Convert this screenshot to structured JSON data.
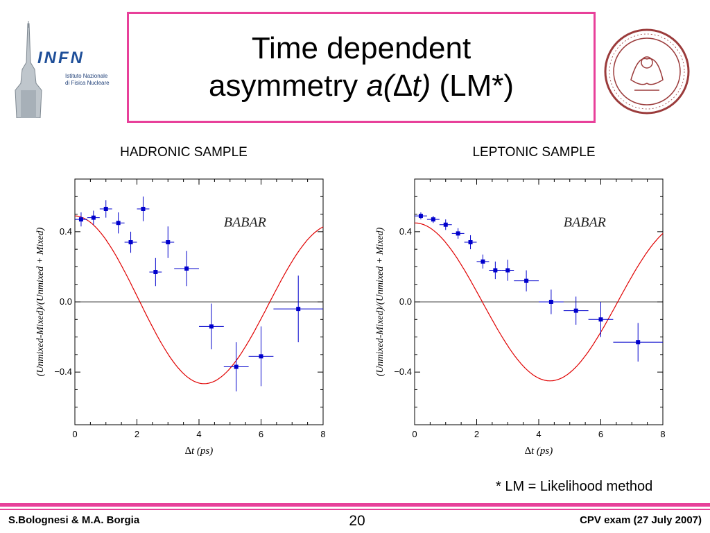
{
  "slide": {
    "title_line1": "Time dependent",
    "title_line2_pre": "asymmetry ",
    "title_line2_math": "a(∆t)",
    "title_line2_post": " (LM*)",
    "footnote": "* LM = Likelihood method",
    "footer_left": "S.Bolognesi & M.A. Borgia",
    "page_number": "20",
    "footer_right": "CPV exam (27 July 2007)",
    "accent_color": "#e8409a"
  },
  "logos": {
    "infn_text": "INFN",
    "infn_sub1": "Istituto Nazionale",
    "infn_sub2": "di Fisica Nucleare",
    "seal_icon": "university-seal-icon"
  },
  "chart_data": [
    {
      "type": "scatter",
      "title": "HADRONIC SAMPLE",
      "watermark": "BABAR",
      "xlabel": "∆t (ps)",
      "ylabel": "(Unmixed-Mixed)/(Unmixed + Mixed)",
      "xlim": [
        0,
        8
      ],
      "ylim": [
        -0.7,
        0.7
      ],
      "xticks": [
        "0",
        "2",
        "4",
        "6",
        "8"
      ],
      "yticks": [
        {
          "v": 0.4,
          "label": "0.4"
        },
        {
          "v": 0.0,
          "label": "0.0"
        },
        {
          "v": -0.4,
          "label": "−0.4"
        }
      ],
      "marker_color": "#0000cc",
      "fit_color": "#e00000",
      "points": [
        {
          "x": 0.2,
          "y": 0.47,
          "xerr": 0.2,
          "yerr": 0.04
        },
        {
          "x": 0.6,
          "y": 0.48,
          "xerr": 0.2,
          "yerr": 0.04
        },
        {
          "x": 1.0,
          "y": 0.53,
          "xerr": 0.2,
          "yerr": 0.05
        },
        {
          "x": 1.4,
          "y": 0.45,
          "xerr": 0.2,
          "yerr": 0.06
        },
        {
          "x": 1.8,
          "y": 0.34,
          "xerr": 0.2,
          "yerr": 0.06
        },
        {
          "x": 2.2,
          "y": 0.53,
          "xerr": 0.2,
          "yerr": 0.07
        },
        {
          "x": 2.6,
          "y": 0.17,
          "xerr": 0.2,
          "yerr": 0.08
        },
        {
          "x": 3.0,
          "y": 0.34,
          "xerr": 0.2,
          "yerr": 0.09
        },
        {
          "x": 3.6,
          "y": 0.19,
          "xerr": 0.4,
          "yerr": 0.1
        },
        {
          "x": 4.4,
          "y": -0.14,
          "xerr": 0.4,
          "yerr": 0.13
        },
        {
          "x": 5.2,
          "y": -0.37,
          "xerr": 0.4,
          "yerr": 0.14
        },
        {
          "x": 6.0,
          "y": -0.31,
          "xerr": 0.4,
          "yerr": 0.17
        },
        {
          "x": 7.2,
          "y": -0.04,
          "xerr": 0.8,
          "yerr": 0.19
        }
      ],
      "fit": {
        "amplitude": 0.49,
        "omega": 0.75,
        "damping": 0.012
      }
    },
    {
      "type": "scatter",
      "title": "LEPTONIC SAMPLE",
      "watermark": "BABAR",
      "xlabel": "∆t (ps)",
      "ylabel": "(Unmixed-Mixed)/(Unmixed + Mixed)",
      "xlim": [
        0,
        8
      ],
      "ylim": [
        -0.7,
        0.7
      ],
      "xticks": [
        "0",
        "2",
        "4",
        "6",
        "8"
      ],
      "yticks": [
        {
          "v": 0.4,
          "label": "0.4"
        },
        {
          "v": 0.0,
          "label": "0.0"
        },
        {
          "v": -0.4,
          "label": "−0.4"
        }
      ],
      "marker_color": "#0000cc",
      "fit_color": "#e00000",
      "points": [
        {
          "x": 0.2,
          "y": 0.49,
          "xerr": 0.2,
          "yerr": 0.02
        },
        {
          "x": 0.6,
          "y": 0.47,
          "xerr": 0.2,
          "yerr": 0.02
        },
        {
          "x": 1.0,
          "y": 0.44,
          "xerr": 0.2,
          "yerr": 0.03
        },
        {
          "x": 1.4,
          "y": 0.39,
          "xerr": 0.2,
          "yerr": 0.03
        },
        {
          "x": 1.8,
          "y": 0.34,
          "xerr": 0.2,
          "yerr": 0.04
        },
        {
          "x": 2.2,
          "y": 0.23,
          "xerr": 0.2,
          "yerr": 0.04
        },
        {
          "x": 2.6,
          "y": 0.18,
          "xerr": 0.2,
          "yerr": 0.05
        },
        {
          "x": 3.0,
          "y": 0.18,
          "xerr": 0.2,
          "yerr": 0.06
        },
        {
          "x": 3.6,
          "y": 0.12,
          "xerr": 0.4,
          "yerr": 0.06
        },
        {
          "x": 4.4,
          "y": 0.0,
          "xerr": 0.4,
          "yerr": 0.07
        },
        {
          "x": 5.2,
          "y": -0.05,
          "xerr": 0.4,
          "yerr": 0.08
        },
        {
          "x": 6.0,
          "y": -0.1,
          "xerr": 0.4,
          "yerr": 0.1
        },
        {
          "x": 7.2,
          "y": -0.23,
          "xerr": 0.8,
          "yerr": 0.11
        }
      ],
      "fit": {
        "amplitude": 0.45,
        "omega": 0.72,
        "damping": 0.0
      }
    }
  ]
}
